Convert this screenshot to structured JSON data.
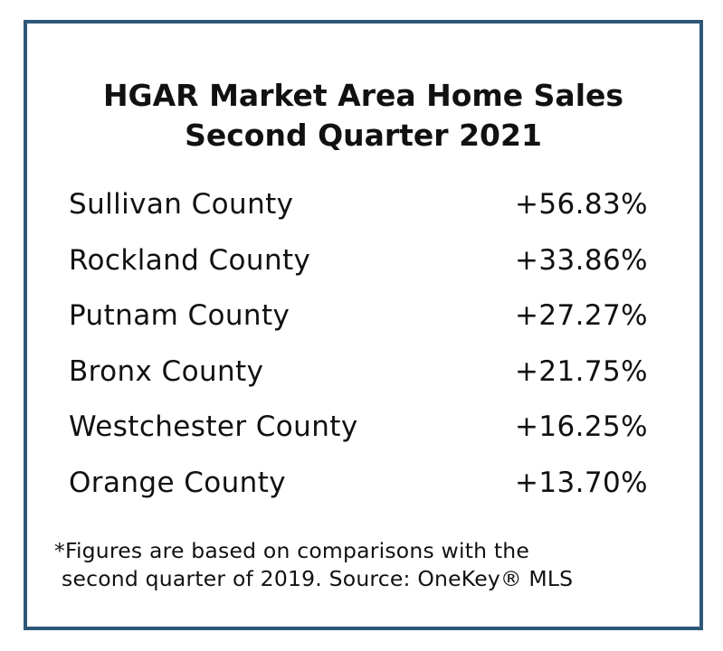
{
  "title": {
    "line1": "HGAR Market Area Home Sales",
    "line2": "Second Quarter 2021"
  },
  "rows": [
    {
      "county": "Sullivan County",
      "change": "+56.83%"
    },
    {
      "county": "Rockland County",
      "change": "+33.86%"
    },
    {
      "county": "Putnam County",
      "change": "+27.27%"
    },
    {
      "county": "Bronx County",
      "change": "+21.75%"
    },
    {
      "county": "Westchester County",
      "change": "+16.25%"
    },
    {
      "county": "Orange County",
      "change": "+13.70%"
    }
  ],
  "footnote": {
    "line1": "*Figures are based on comparisons with the",
    "line2": "second quarter of 2019. Source: OneKey® MLS"
  },
  "colors": {
    "border": "#2e5878",
    "text": "#111111",
    "background": "#ffffff"
  }
}
